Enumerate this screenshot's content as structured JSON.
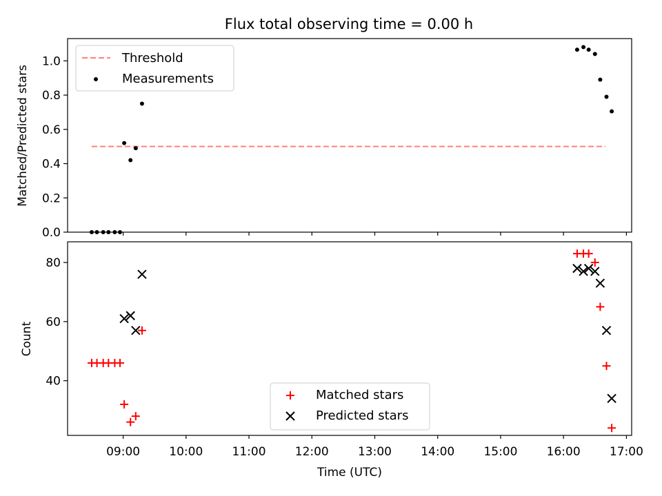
{
  "title": "Flux total observing time = 0.00 h",
  "xlabel": "Time (UTC)",
  "colors": {
    "threshold": "#ff7f7f",
    "measurement": "#000000",
    "matched": "#ff0000",
    "predicted": "#000000"
  },
  "chart_data": [
    {
      "type": "scatter",
      "ylabel": "Matched/Predicted stars",
      "xlim": [
        "08:07",
        "17:05"
      ],
      "ylim": [
        0,
        1.13
      ],
      "yticks": [
        "0.0",
        "0.2",
        "0.4",
        "0.6",
        "0.8",
        "1.0"
      ],
      "legend_position": "top-left",
      "series": [
        {
          "name": "Threshold",
          "kind": "dashed-line",
          "x": [
            "08:30",
            "16:40"
          ],
          "y": [
            0.5,
            0.5
          ]
        },
        {
          "name": "Measurements",
          "kind": "points",
          "x": [
            "08:30",
            "08:35",
            "08:41",
            "08:46",
            "08:52",
            "08:57",
            "09:01",
            "09:07",
            "09:12",
            "09:18",
            "16:13",
            "16:19",
            "16:24",
            "16:30",
            "16:35",
            "16:41",
            "16:46"
          ],
          "y": [
            0.0,
            0.0,
            0.0,
            0.0,
            0.0,
            0.0,
            0.52,
            0.42,
            0.49,
            0.75,
            1.065,
            1.08,
            1.065,
            1.04,
            0.89,
            0.79,
            0.705
          ]
        }
      ]
    },
    {
      "type": "scatter",
      "ylabel": "Count",
      "xlim": [
        "08:07",
        "17:05"
      ],
      "ylim": [
        21.5,
        87
      ],
      "yticks": [
        "40",
        "60",
        "80"
      ],
      "xticks": [
        "09:00",
        "10:00",
        "11:00",
        "12:00",
        "13:00",
        "14:00",
        "15:00",
        "16:00",
        "17:00"
      ],
      "legend_position": "lower-center",
      "series": [
        {
          "name": "Matched stars",
          "marker": "plus",
          "x": [
            "08:30",
            "08:35",
            "08:41",
            "08:46",
            "08:52",
            "08:57",
            "09:01",
            "09:07",
            "09:12",
            "09:18",
            "16:13",
            "16:19",
            "16:24",
            "16:30",
            "16:35",
            "16:41",
            "16:46"
          ],
          "y": [
            46,
            46,
            46,
            46,
            46,
            46,
            32,
            26,
            28,
            57,
            83,
            83,
            83,
            80,
            65,
            45,
            24
          ]
        },
        {
          "name": "Predicted stars",
          "marker": "x",
          "x": [
            "09:01",
            "09:07",
            "09:12",
            "09:18",
            "16:13",
            "16:19",
            "16:24",
            "16:30",
            "16:35",
            "16:41",
            "16:46"
          ],
          "y": [
            61,
            62,
            57,
            76,
            78,
            77,
            78,
            77,
            73,
            57,
            34
          ]
        }
      ]
    }
  ]
}
